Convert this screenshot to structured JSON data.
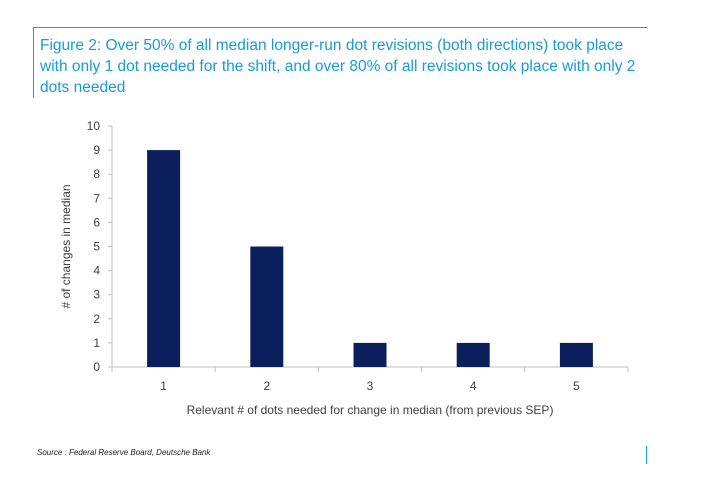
{
  "figure": {
    "title": "Figure 2: Over 50% of all median longer-run dot revisions (both directions) took place with only 1 dot needed for the shift, and over 80% of all revisions took place with only 2 dots needed",
    "source": "Source : Federal Reserve Board, Deutsche Bank",
    "accent_color": "#1a9bd1",
    "bar_color": "#0b1f5c"
  },
  "chart_data": {
    "type": "bar",
    "categories": [
      "1",
      "2",
      "3",
      "4",
      "5"
    ],
    "values": [
      9,
      5,
      1,
      1,
      1
    ],
    "xlabel": "Relevant # of dots needed for change in median (from previous SEP)",
    "ylabel": "# of changes in median",
    "ylim": [
      0,
      10
    ],
    "yticks": [
      0,
      1,
      2,
      3,
      4,
      5,
      6,
      7,
      8,
      9,
      10
    ],
    "grid": false,
    "legend": "none"
  }
}
